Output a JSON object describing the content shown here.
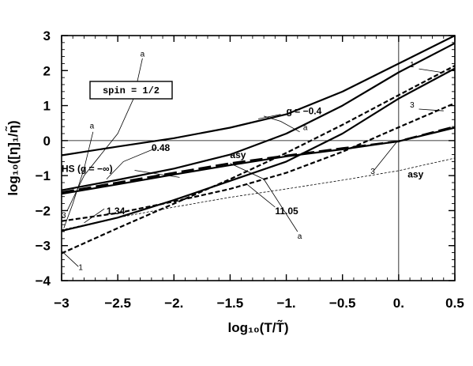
{
  "chart_data": {
    "type": "line",
    "xlabel": "log₁₀(T/T̃)",
    "ylabel": "log₁₀([η]₁/η̃)",
    "xlim": [
      -3,
      0.5
    ],
    "ylim": [
      -4,
      3
    ],
    "x_ticks": [
      -3,
      -2.5,
      -2,
      -1.5,
      -1,
      -0.5,
      0,
      0.5
    ],
    "x_tick_labels": [
      "−3",
      "−2.5",
      "−2.",
      "−1.5",
      "−1.",
      "−0.5",
      "0.",
      "0.5"
    ],
    "y_ticks": [
      -4,
      -3,
      -2,
      -1,
      0,
      1,
      2,
      3
    ],
    "y_tick_labels": [
      "−4",
      "−3",
      "−2",
      "−1",
      "0",
      "1",
      "2",
      "3"
    ],
    "grid": false,
    "reference_lines": {
      "y": 0,
      "x": 0
    },
    "spin_label": "spin = 1/2",
    "series": [
      {
        "style": "solid",
        "x": [
          -3,
          -2.5,
          -2,
          -1.5,
          -1,
          -0.5,
          0,
          0.5
        ],
        "y": [
          -0.42,
          -0.17,
          0.07,
          0.37,
          0.75,
          1.4,
          2.2,
          3.0
        ]
      },
      {
        "style": "solid",
        "x": [
          -3,
          -2.5,
          -2,
          -1.5,
          -1,
          -0.5,
          0,
          0.5
        ],
        "y": [
          -1.42,
          -1.12,
          -0.8,
          -0.4,
          0.2,
          1.0,
          1.95,
          2.78
        ]
      },
      {
        "style": "solid",
        "x": [
          -3,
          -2.5,
          -2,
          -1.5,
          -1,
          -0.5,
          0,
          0.5
        ],
        "y": [
          -2.58,
          -2.2,
          -1.7,
          -1.15,
          -0.6,
          0.2,
          1.2,
          2.06
        ]
      },
      {
        "style": "solid",
        "x": [
          -3,
          -2.5,
          -2,
          -1.5,
          -1,
          -0.5,
          0,
          0.5
        ],
        "y": [
          -1.52,
          -1.25,
          -0.97,
          -0.7,
          -0.45,
          -0.25,
          -0.02,
          0.37
        ]
      },
      {
        "style": "dashed",
        "x": [
          -3,
          -2.5,
          -2,
          -1.5,
          -1,
          -0.5,
          0,
          0.5
        ],
        "y": [
          -3.22,
          -2.5,
          -1.8,
          -1.1,
          -0.35,
          0.45,
          1.3,
          2.14
        ]
      },
      {
        "style": "dashed",
        "x": [
          -3,
          -2.5,
          -2,
          -1.5,
          -1,
          -0.5,
          0,
          0.5
        ],
        "y": [
          -2.3,
          -2.07,
          -1.74,
          -1.38,
          -0.92,
          -0.32,
          0.38,
          1.07
        ]
      },
      {
        "style": "longdash",
        "x": [
          -3,
          -2.5,
          -2,
          -1.5,
          -1,
          -0.5,
          0,
          0.5
        ],
        "y": [
          -1.48,
          -1.2,
          -0.92,
          -0.65,
          -0.43,
          -0.22,
          -0.02,
          0.4
        ]
      },
      {
        "style": "thin",
        "x": [
          -3,
          -2.5,
          -2,
          -1.5,
          -1,
          -0.5,
          0,
          0.5
        ],
        "y": [
          -2.55,
          -2.2,
          -1.9,
          -1.62,
          -1.38,
          -1.13,
          -0.86,
          -0.5
        ]
      }
    ],
    "annotations": [
      {
        "text": "g = −0.4",
        "x": -1.0,
        "y": 0.75
      },
      {
        "text": "0.48",
        "x": -2.2,
        "y": -0.3
      },
      {
        "text": "HS (g = −∞)",
        "x": -3.0,
        "y": -0.9
      },
      {
        "text": "asy",
        "x": -1.5,
        "y": -0.5
      },
      {
        "text": "1.34",
        "x": -2.6,
        "y": -2.1
      },
      {
        "text": "3",
        "x": -3.0,
        "y": -2.2
      },
      {
        "text": "1",
        "x": -2.85,
        "y": -3.7
      },
      {
        "text": "11.05",
        "x": -1.1,
        "y": -2.1
      },
      {
        "text": "a",
        "x": -2.3,
        "y": 2.4
      },
      {
        "text": "a",
        "x": -2.75,
        "y": 0.35
      },
      {
        "text": "a",
        "x": -0.85,
        "y": 0.3
      },
      {
        "text": "a",
        "x": -0.9,
        "y": -2.8
      },
      {
        "text": "1",
        "x": 0.1,
        "y": 2.1
      },
      {
        "text": "3",
        "x": 0.1,
        "y": 0.95
      },
      {
        "text": "3",
        "x": -0.25,
        "y": -0.95
      },
      {
        "text": "asy",
        "x": 0.08,
        "y": -1.05
      }
    ]
  },
  "colors": {
    "ink": "#000000",
    "background": "#ffffff"
  }
}
